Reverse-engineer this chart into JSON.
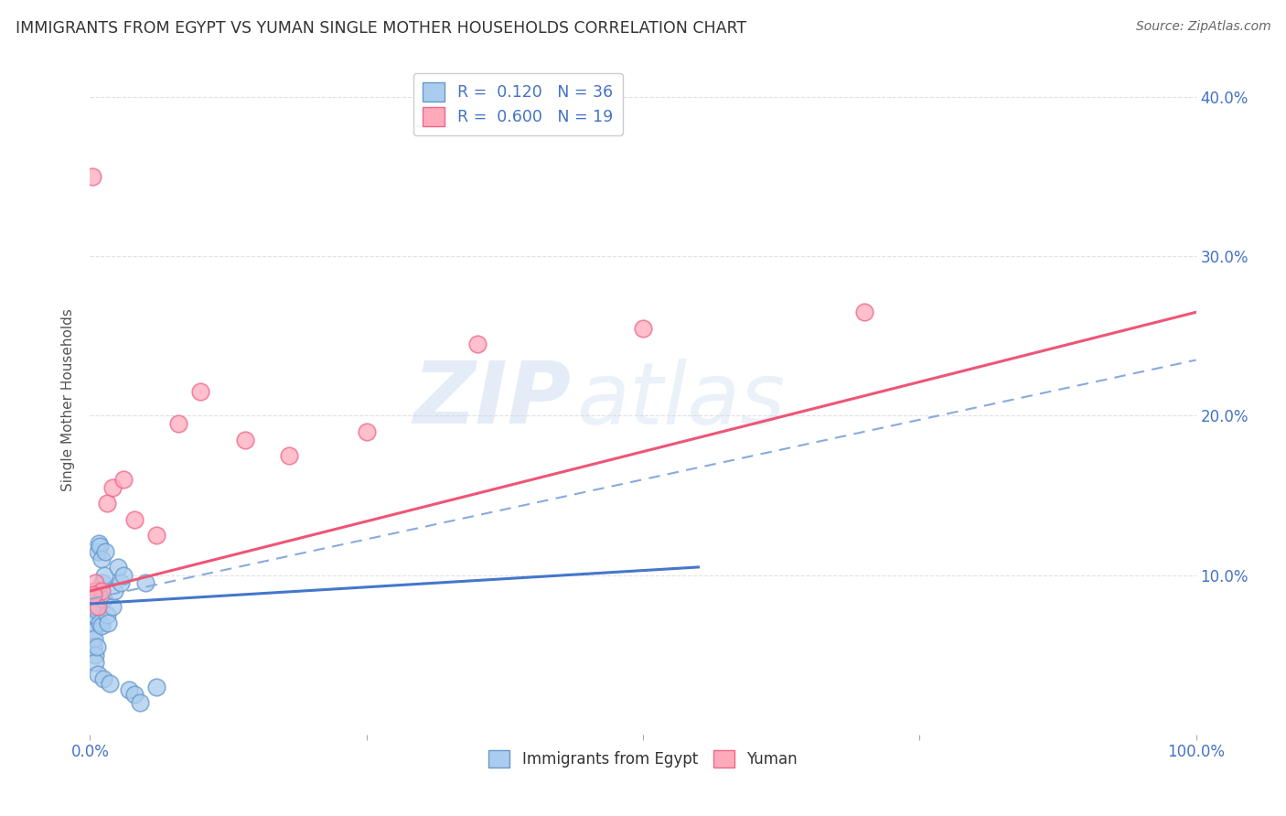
{
  "title": "IMMIGRANTS FROM EGYPT VS YUMAN SINGLE MOTHER HOUSEHOLDS CORRELATION CHART",
  "source": "Source: ZipAtlas.com",
  "ylabel": "Single Mother Households",
  "xlim": [
    0,
    1.0
  ],
  "ylim": [
    0,
    0.42
  ],
  "xticks": [
    0.0,
    0.25,
    0.5,
    0.75,
    1.0
  ],
  "xtick_labels": [
    "0.0%",
    "",
    "",
    "",
    "100.0%"
  ],
  "yticks": [
    0.0,
    0.1,
    0.2,
    0.3,
    0.4
  ],
  "ytick_labels": [
    "",
    "10.0%",
    "20.0%",
    "30.0%",
    "40.0%"
  ],
  "blue_scatter_x": [
    0.002,
    0.003,
    0.003,
    0.004,
    0.004,
    0.005,
    0.005,
    0.005,
    0.006,
    0.006,
    0.007,
    0.007,
    0.008,
    0.008,
    0.009,
    0.009,
    0.01,
    0.01,
    0.011,
    0.012,
    0.012,
    0.013,
    0.014,
    0.015,
    0.016,
    0.018,
    0.02,
    0.022,
    0.025,
    0.028,
    0.03,
    0.035,
    0.04,
    0.045,
    0.05,
    0.06
  ],
  "blue_scatter_y": [
    0.07,
    0.065,
    0.055,
    0.06,
    0.075,
    0.08,
    0.05,
    0.045,
    0.078,
    0.055,
    0.038,
    0.115,
    0.09,
    0.12,
    0.07,
    0.118,
    0.068,
    0.11,
    0.095,
    0.085,
    0.035,
    0.1,
    0.115,
    0.075,
    0.07,
    0.032,
    0.08,
    0.09,
    0.105,
    0.095,
    0.1,
    0.028,
    0.025,
    0.02,
    0.095,
    0.03
  ],
  "pink_scatter_x": [
    0.002,
    0.004,
    0.005,
    0.007,
    0.01,
    0.015,
    0.02,
    0.03,
    0.04,
    0.06,
    0.08,
    0.1,
    0.14,
    0.18,
    0.25,
    0.35,
    0.5,
    0.7,
    0.003
  ],
  "pink_scatter_y": [
    0.35,
    0.09,
    0.095,
    0.08,
    0.09,
    0.145,
    0.155,
    0.16,
    0.135,
    0.125,
    0.195,
    0.215,
    0.185,
    0.175,
    0.19,
    0.245,
    0.255,
    0.265,
    0.088
  ],
  "blue_line_x0": 0.0,
  "blue_line_x1": 0.55,
  "blue_line_y0": 0.082,
  "blue_line_y1": 0.105,
  "pink_line_x0": 0.0,
  "pink_line_x1": 1.0,
  "pink_line_y0": 0.09,
  "pink_line_y1": 0.265,
  "dash_line_x0": 0.0,
  "dash_line_x1": 1.0,
  "dash_line_y0": 0.085,
  "dash_line_y1": 0.235,
  "blue_scatter_facecolor": "#aaccee",
  "blue_scatter_edgecolor": "#6699cc",
  "pink_scatter_facecolor": "#ffaabb",
  "pink_scatter_edgecolor": "#ee6688",
  "blue_line_color": "#4477cc",
  "pink_line_color": "#ee5577",
  "dash_line_color": "#88aadd",
  "legend_blue_facecolor": "#aaccee",
  "legend_blue_edgecolor": "#6699cc",
  "legend_pink_facecolor": "#ffaabb",
  "legend_pink_edgecolor": "#ee6688",
  "tick_color": "#4472c4",
  "ylabel_color": "#555555",
  "title_color": "#333333",
  "source_color": "#666666",
  "grid_color": "#dddddd",
  "background_color": "#ffffff",
  "watermark_zip": "ZIP",
  "watermark_atlas": "atlas",
  "watermark_color_zip": "#c5d8ee",
  "watermark_color_atlas": "#c5d8ee"
}
